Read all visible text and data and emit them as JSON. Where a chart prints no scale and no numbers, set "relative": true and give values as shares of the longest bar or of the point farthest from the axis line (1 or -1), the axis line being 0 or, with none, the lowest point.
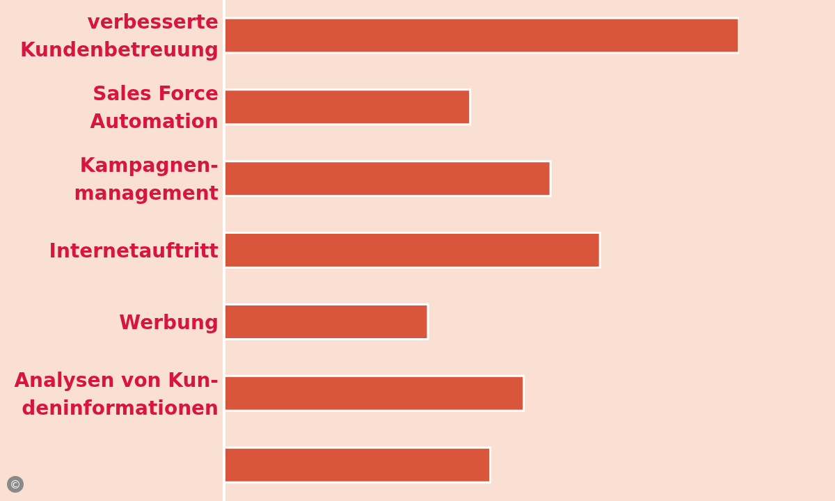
{
  "chart_data": {
    "type": "bar",
    "orientation": "horizontal",
    "relative": true,
    "color": "#d9553c",
    "categories": [
      "verbesserte\nKundenbetreuung",
      "Sales Force\nAutomation",
      "Kampagnen-\nmanagement",
      "Internetauftritt",
      "Werbung",
      "Analysen von Kun-\ndeninformationen",
      null
    ],
    "values": [
      1,
      0.478,
      0.634,
      0.73,
      0.396,
      0.582,
      0.517
    ],
    "annotations": [
      "©"
    ]
  }
}
